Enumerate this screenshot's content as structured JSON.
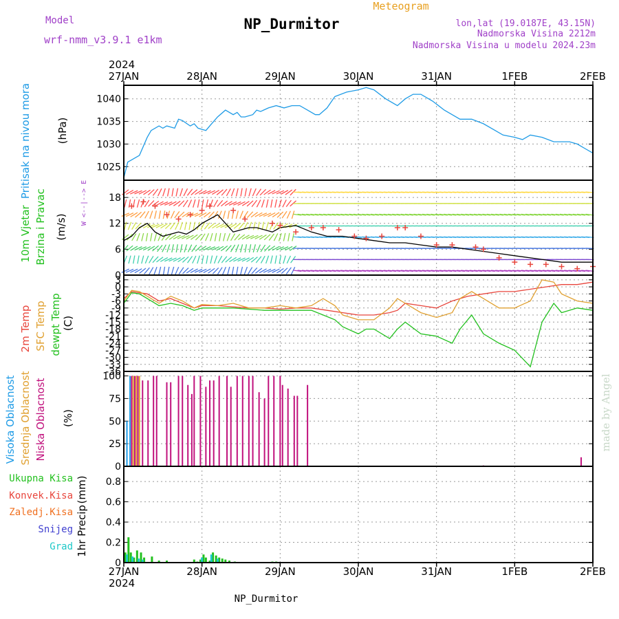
{
  "header": {
    "model_label": "Model",
    "model_name": "wrf-nmm_v3.9.1 e1km",
    "station_title": "NP_Durmitor",
    "meteogram_label": "Meteogram",
    "lonlat": "lon,lat (19.0187E, 43.15N)",
    "elevation": "Nadmorska Visina 2212m",
    "model_elevation": "Nadmorska Visina u modelu 2024.23m",
    "footer_station": "NP_Durmitor",
    "watermark": "made by Angel"
  },
  "colors": {
    "title": "#000000",
    "model": "#a040c8",
    "meteogram": "#e8a020",
    "pressure": "#1e9be6",
    "t2m": "#e8453c",
    "sfc": "#e0a030",
    "dewpt": "#22c01e",
    "high_cloud": "#1e9be6",
    "mid_cloud": "#e0a030",
    "low_cloud": "#c0107c",
    "total_precip": "#22c01e",
    "conv_precip": "#e8453c",
    "frz_precip": "#f07020",
    "snow": "#4040d0",
    "grad": "#1ec8c8",
    "wind_speed": "#000000",
    "gust": "#e8453c",
    "watermark": "#c8d8c8"
  },
  "chart_data": {
    "type": "line",
    "x_axis": {
      "year": "2024",
      "ticks": [
        "27JAN",
        "28JAN",
        "29JAN",
        "30JAN",
        "31JAN",
        "1FEB",
        "2FEB"
      ],
      "range_days": [
        0,
        6
      ]
    },
    "panels": [
      {
        "id": "pressure",
        "type": "line",
        "ylabel_name": "Pritisak na nivou mora",
        "ylabel_unit": "(hPa)",
        "ylim": [
          1022,
          1043
        ],
        "yticks": [
          "1025",
          "1030",
          "1035",
          "1040"
        ],
        "ytick_values": [
          1025,
          1030,
          1035,
          1040
        ],
        "grid": true,
        "series": [
          {
            "key": "pressure",
            "x": [
              0,
              0.05,
              0.1,
              0.2,
              0.3,
              0.35,
              0.45,
              0.5,
              0.55,
              0.65,
              0.7,
              0.75,
              0.85,
              0.9,
              0.95,
              1.05,
              1.1,
              1.2,
              1.3,
              1.4,
              1.45,
              1.5,
              1.55,
              1.65,
              1.7,
              1.75,
              1.85,
              1.95,
              2.05,
              2.15,
              2.25,
              2.35,
              2.45,
              2.5,
              2.6,
              2.7,
              2.85,
              3.0,
              3.1,
              3.2,
              3.35,
              3.5,
              3.6,
              3.7,
              3.8,
              3.85,
              3.95,
              4.1,
              4.2,
              4.3,
              4.45,
              4.6,
              4.75,
              4.85,
              5.0,
              5.1,
              5.2,
              5.35,
              5.5,
              5.6,
              5.7,
              5.8,
              5.9,
              6.0
            ],
            "y": [
              1022.5,
              1026,
              1026.5,
              1027.5,
              1031.5,
              1033,
              1034,
              1033.5,
              1034,
              1033.5,
              1035.5,
              1035.2,
              1034,
              1034.5,
              1033.5,
              1033,
              1034,
              1036,
              1037.5,
              1036.5,
              1037,
              1036,
              1036,
              1036.5,
              1037.5,
              1037.2,
              1038,
              1038.5,
              1038,
              1038.5,
              1038.5,
              1037.5,
              1036.5,
              1036.5,
              1038,
              1040.5,
              1041.5,
              1042,
              1042.5,
              1042,
              1040,
              1038.5,
              1040,
              1041,
              1041,
              1040.5,
              1039.5,
              1037.5,
              1036.5,
              1035.5,
              1035.5,
              1034.5,
              1033,
              1032,
              1031.5,
              1031,
              1032,
              1031.5,
              1030.5,
              1030.5,
              1030.5,
              1030,
              1029,
              1028
            ]
          }
        ]
      },
      {
        "id": "wind",
        "type": "line",
        "ylabel_name": "10m Vjetar",
        "ylabel_name2": "Brzina i Pravac",
        "ylabel_unit": "(m/s)",
        "compass": "W <--|--> E",
        "ylim": [
          0,
          22
        ],
        "yticks": [
          "0",
          "6",
          "12",
          "18"
        ],
        "ytick_values": [
          0,
          6,
          12,
          18
        ],
        "grid": true,
        "series": [
          {
            "key": "wind_speed",
            "x": [
              0,
              0.1,
              0.2,
              0.3,
              0.4,
              0.5,
              0.6,
              0.7,
              0.8,
              0.9,
              1.0,
              1.1,
              1.2,
              1.3,
              1.4,
              1.5,
              1.6,
              1.7,
              1.8,
              1.9,
              2.0,
              2.2,
              2.4,
              2.6,
              2.8,
              3.0,
              3.2,
              3.4,
              3.6,
              3.8,
              4.0,
              4.2,
              4.4,
              4.6,
              4.8,
              5.0,
              5.2,
              5.4,
              5.6,
              5.8,
              6.0
            ],
            "y": [
              8,
              9,
              11,
              12,
              10,
              9,
              9.5,
              10,
              9.5,
              10.5,
              12,
              13,
              14,
              12,
              10,
              10.5,
              11,
              11,
              10.5,
              10,
              11,
              11.5,
              10,
              9,
              9,
              8.5,
              8,
              7.5,
              7.5,
              7,
              6.5,
              6.5,
              6,
              5.5,
              5,
              4.5,
              4,
              3.5,
              3,
              3,
              3
            ]
          },
          {
            "key": "gust",
            "x": [
              0.1,
              0.25,
              0.4,
              0.55,
              0.7,
              0.85,
              1.0,
              1.1,
              1.4,
              1.55,
              1.9,
              2.0,
              2.2,
              2.4,
              2.55,
              2.75,
              2.95,
              3.1,
              3.3,
              3.5,
              3.6,
              3.8,
              4.0,
              4.2,
              4.5,
              4.6,
              4.8,
              5.0,
              5.2,
              5.4,
              5.6,
              5.8,
              6.0
            ],
            "y": [
              16,
              17,
              16,
              14,
              13,
              14,
              15,
              16,
              15,
              13,
              12,
              11.5,
              10,
              11,
              11,
              10.5,
              9,
              8.5,
              9,
              11,
              11,
              9,
              7,
              7,
              6.5,
              6,
              4,
              3,
              2.5,
              2.5,
              2,
              1.5,
              2
            ]
          }
        ]
      },
      {
        "id": "temperature",
        "type": "line",
        "ylabel_name": "2m Temp",
        "ylabel_name2": "SFC Temp",
        "ylabel_name3": "dewpt Temp",
        "ylabel_unit": "(C)",
        "ylim": [
          -36,
          5
        ],
        "yticks": [
          "3",
          "0",
          "-3",
          "-6",
          "-9",
          "-12",
          "-15",
          "-18",
          "-21",
          "-24",
          "-27",
          "-30",
          "-33",
          "-36"
        ],
        "ytick_values": [
          3,
          0,
          -3,
          -6,
          -9,
          -12,
          -15,
          -18,
          -21,
          -24,
          -27,
          -30,
          -33,
          -36
        ],
        "grid": true,
        "series": [
          {
            "key": "t2m",
            "x": [
              0,
              0.1,
              0.2,
              0.3,
              0.45,
              0.6,
              0.75,
              0.9,
              1.0,
              1.2,
              1.4,
              1.6,
              1.8,
              2.0,
              2.2,
              2.4,
              2.6,
              2.8,
              3.0,
              3.2,
              3.4,
              3.5,
              3.6,
              3.8,
              4.0,
              4.2,
              4.4,
              4.6,
              4.8,
              5.0,
              5.2,
              5.4,
              5.6,
              5.8,
              6.0
            ],
            "y": [
              -5,
              -2,
              -2.5,
              -3,
              -6,
              -5,
              -7,
              -9,
              -8,
              -8,
              -8.5,
              -9,
              -9,
              -9.5,
              -9,
              -9,
              -10,
              -11,
              -12,
              -12,
              -11,
              -10,
              -7,
              -8,
              -9,
              -6,
              -4,
              -3,
              -2,
              -2,
              -1,
              0,
              1,
              1,
              2
            ]
          },
          {
            "key": "sfc",
            "x": [
              0,
              0.1,
              0.2,
              0.3,
              0.45,
              0.6,
              0.75,
              0.9,
              1.0,
              1.2,
              1.4,
              1.6,
              1.8,
              2.0,
              2.2,
              2.4,
              2.55,
              2.7,
              2.8,
              3.0,
              3.2,
              3.4,
              3.5,
              3.6,
              3.8,
              4.0,
              4.2,
              4.3,
              4.45,
              4.6,
              4.8,
              5.0,
              5.2,
              5.35,
              5.5,
              5.6,
              5.8,
              6.0
            ],
            "y": [
              -6,
              -1.5,
              -2,
              -4,
              -7,
              -4,
              -6,
              -9,
              -7.5,
              -8,
              -7,
              -9,
              -9,
              -8,
              -9,
              -8,
              -5,
              -8,
              -12,
              -14,
              -14,
              -9,
              -5,
              -7,
              -11,
              -13,
              -11,
              -5,
              -2,
              -5,
              -9,
              -9,
              -6,
              3,
              2,
              -3,
              -6,
              -7
            ]
          },
          {
            "key": "dewpt",
            "x": [
              0,
              0.1,
              0.2,
              0.3,
              0.45,
              0.6,
              0.75,
              0.9,
              1.0,
              1.2,
              1.4,
              1.6,
              1.8,
              2.0,
              2.2,
              2.4,
              2.55,
              2.7,
              2.8,
              3.0,
              3.1,
              3.2,
              3.4,
              3.5,
              3.6,
              3.8,
              4.0,
              4.2,
              4.3,
              4.45,
              4.6,
              4.8,
              5.0,
              5.2,
              5.35,
              5.5,
              5.6,
              5.8,
              6.0
            ],
            "y": [
              -7,
              -2.5,
              -3,
              -5,
              -8,
              -7,
              -8,
              -10,
              -9,
              -9,
              -9,
              -9.5,
              -10,
              -10,
              -10,
              -10,
              -12,
              -14,
              -17,
              -20,
              -18,
              -18,
              -22,
              -18,
              -15,
              -20,
              -21,
              -24,
              -18,
              -12,
              -20,
              -24,
              -27,
              -34,
              -15,
              -7,
              -11,
              -9,
              -10
            ]
          }
        ]
      },
      {
        "id": "cloud",
        "type": "bar",
        "ylabel_name": "Visoka Oblacnost",
        "ylabel_name2": "Srednja Oblacnost",
        "ylabel_name3": "Niska Oblacnost",
        "ylabel_unit": "(%)",
        "ylim": [
          0,
          105
        ],
        "yticks": [
          "0",
          "25",
          "50",
          "75",
          "100"
        ],
        "ytick_values": [
          0,
          25,
          50,
          75,
          100
        ],
        "grid": true,
        "series": [
          {
            "key": "high_cloud",
            "x": [
              0.04,
              0.08
            ],
            "values": [
              50,
              100
            ]
          },
          {
            "key": "mid_cloud",
            "x": [
              0.12,
              0.16,
              0.2
            ],
            "values": [
              100,
              100,
              100
            ]
          },
          {
            "key": "low_cloud",
            "x": [
              0.1,
              0.14,
              0.18,
              0.24,
              0.31,
              0.38,
              0.42,
              0.55,
              0.6,
              0.7,
              0.75,
              0.82,
              0.87,
              0.9,
              0.98,
              1.05,
              1.1,
              1.15,
              1.22,
              1.32,
              1.37,
              1.45,
              1.52,
              1.6,
              1.65,
              1.73,
              1.8,
              1.85,
              1.92,
              2.0,
              2.03,
              2.1,
              2.18,
              2.22,
              2.35,
              4.6,
              5.85
            ],
            "values": [
              100,
              100,
              100,
              95,
              95,
              100,
              100,
              93,
              93,
              100,
              100,
              90,
              80,
              100,
              100,
              88,
              95,
              95,
              100,
              100,
              88,
              100,
              100,
              100,
              100,
              82,
              75,
              100,
              100,
              100,
              90,
              86,
              78,
              78,
              90,
              1,
              10
            ]
          }
        ]
      },
      {
        "id": "precip",
        "type": "bar",
        "ylabel_name": "1hr Precip",
        "ylabel_unit": "(mm)",
        "legend": [
          "Ukupna Kisa",
          "Konvek.Kisa",
          "Zaledj.Kisa",
          "Snijeg",
          "Grad"
        ],
        "legend_keys": [
          "total_precip",
          "conv_precip",
          "frz_precip",
          "snow",
          "grad"
        ],
        "ylim": [
          0,
          0.95
        ],
        "yticks": [
          "0",
          "0.2",
          "0.4",
          "0.6",
          "0.8"
        ],
        "ytick_values": [
          0,
          0.2,
          0.4,
          0.6,
          0.8
        ],
        "grid": true,
        "series": [
          {
            "key": "total_precip",
            "x": [
              0.02,
              0.06,
              0.09,
              0.13,
              0.17,
              0.22,
              0.26,
              0.36,
              0.45,
              0.55,
              0.9,
              0.94,
              0.98,
              1.02,
              1.05,
              1.1,
              1.14,
              1.18,
              1.22,
              1.26,
              1.3,
              1.35,
              1.42,
              1.9,
              1.95
            ],
            "values": [
              0.1,
              0.25,
              0.1,
              0.05,
              0.12,
              0.1,
              0.05,
              0.06,
              0.02,
              0.02,
              0.03,
              0.01,
              0.03,
              0.08,
              0.05,
              0.02,
              0.1,
              0.07,
              0.05,
              0.04,
              0.03,
              0.02,
              0.01,
              0.01,
              0.01
            ]
          },
          {
            "key": "grad",
            "x": [
              0.04,
              0.11,
              0.19,
              0.24,
              1.0,
              1.12,
              1.2
            ],
            "values": [
              0.08,
              0.06,
              0.04,
              0.03,
              0.05,
              0.08,
              0.04
            ]
          }
        ]
      }
    ],
    "wind_arrow_colors": [
      "#ff3030",
      "#ff8c1e",
      "#ffd21e",
      "#c8dc28",
      "#78d228",
      "#28c850",
      "#1ec8a0",
      "#1ea0e6",
      "#2860dc",
      "#6428c8",
      "#a01eb4"
    ]
  }
}
